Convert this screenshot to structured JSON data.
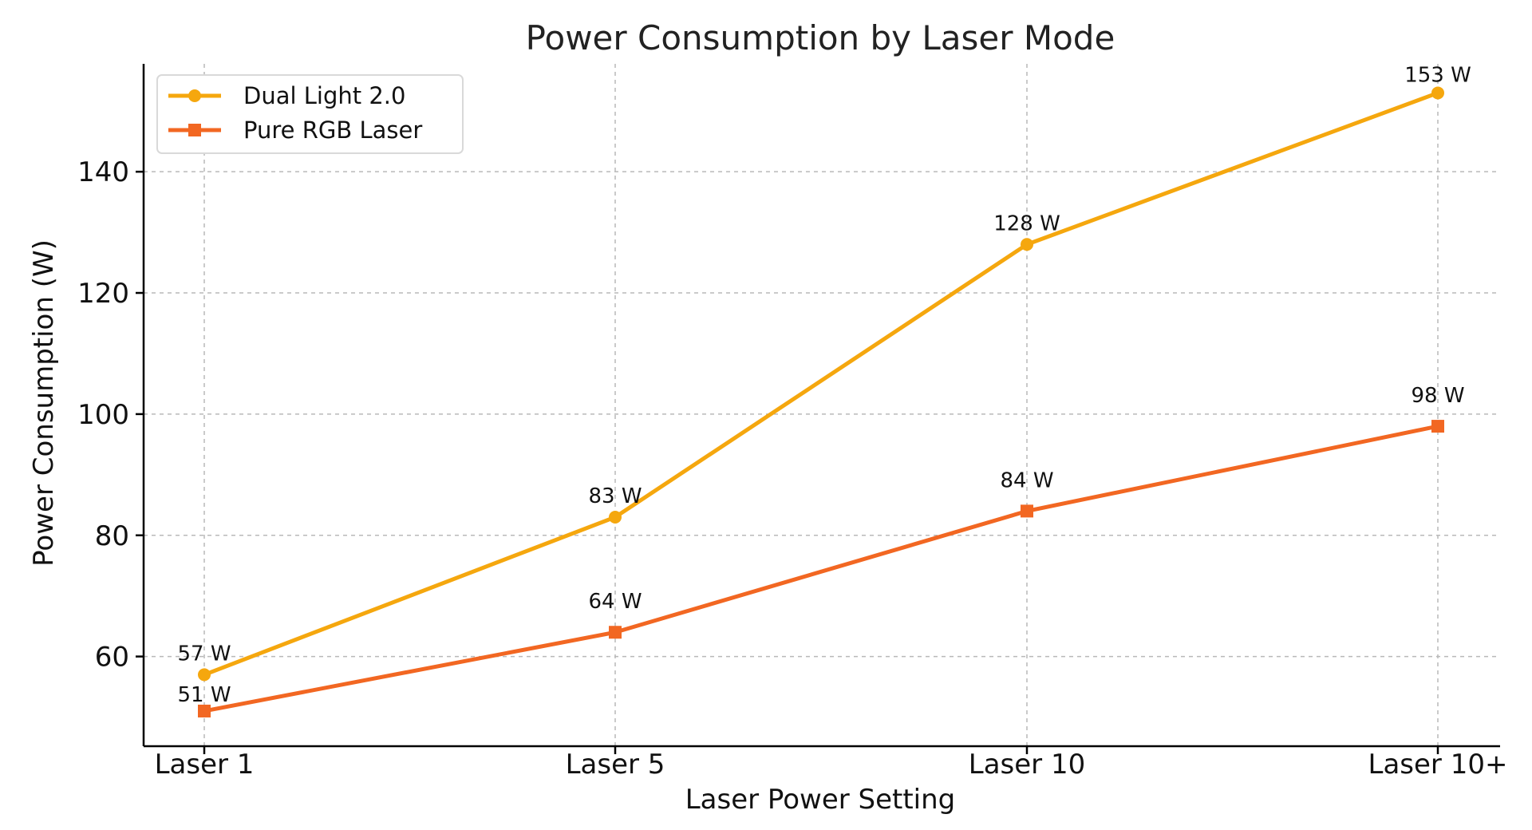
{
  "chart_data": {
    "type": "line",
    "title": "Power Consumption by Laser Mode",
    "xlabel": "Laser Power Setting",
    "ylabel": "Power Consumption (W)",
    "categories": [
      "Laser 1",
      "Laser 5",
      "Laser 10",
      "Laser 10+"
    ],
    "ylim": [
      45.2,
      157.8
    ],
    "yticks": [
      60,
      80,
      100,
      120,
      140
    ],
    "grid": true,
    "legend_position": "top-left",
    "series": [
      {
        "name": "Dual Light 2.0",
        "values": [
          57,
          83,
          128,
          153
        ],
        "labels": [
          "57 W",
          "83 W",
          "128 W",
          "153 W"
        ],
        "color": "#F5A70E",
        "marker": "circle"
      },
      {
        "name": "Pure RGB Laser",
        "values": [
          51,
          64,
          84,
          98
        ],
        "labels": [
          "51 W",
          "64 W",
          "84 W",
          "98 W"
        ],
        "color": "#F26722",
        "marker": "square"
      }
    ]
  }
}
